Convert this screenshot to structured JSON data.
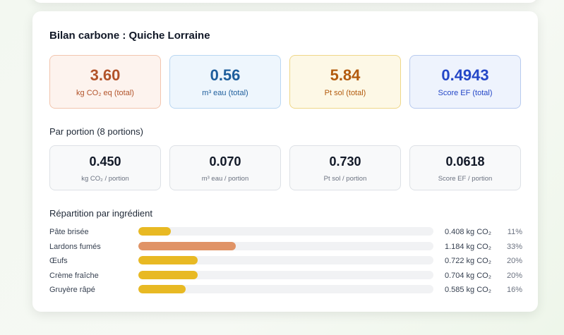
{
  "title": "Bilan carbone : Quiche Lorraine",
  "totals": [
    {
      "value": "3.60",
      "label": "kg CO₂ eq (total)"
    },
    {
      "value": "0.56",
      "label": "m³ eau (total)"
    },
    {
      "value": "5.84",
      "label": "Pt sol (total)"
    },
    {
      "value": "0.4943",
      "label": "Score EF (total)"
    }
  ],
  "portion_heading": "Par portion (8 portions)",
  "portions": [
    {
      "value": "0.450",
      "label": "kg CO₂ / portion"
    },
    {
      "value": "0.070",
      "label": "m³ eau / portion"
    },
    {
      "value": "0.730",
      "label": "Pt sol / portion"
    },
    {
      "value": "0.0618",
      "label": "Score EF / portion"
    }
  ],
  "repartition_heading": "Répartition par ingrédient",
  "ingredients": [
    {
      "name": "Pâte brisée",
      "amount": "0.408 kg CO₂",
      "percent": "11%",
      "share": 0.11,
      "color": "#e8b923"
    },
    {
      "name": "Lardons fumés",
      "amount": "1.184 kg CO₂",
      "percent": "33%",
      "share": 0.33,
      "color": "#e09366"
    },
    {
      "name": "Œufs",
      "amount": "0.722 kg CO₂",
      "percent": "20%",
      "share": 0.2,
      "color": "#e8b923"
    },
    {
      "name": "Crème fraîche",
      "amount": "0.704 kg CO₂",
      "percent": "20%",
      "share": 0.2,
      "color": "#e8b923"
    },
    {
      "name": "Gruyère râpé",
      "amount": "0.585 kg CO₂",
      "percent": "16%",
      "share": 0.16,
      "color": "#e8b923"
    }
  ]
}
